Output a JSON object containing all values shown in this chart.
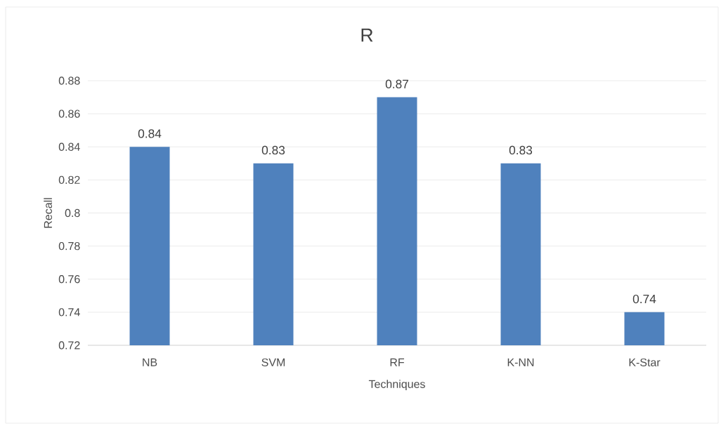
{
  "chart_data": {
    "type": "bar",
    "title": "R",
    "xlabel": "Techniques",
    "ylabel": "Recall",
    "categories": [
      "NB",
      "SVM",
      "RF",
      "K-NN",
      "K-Star"
    ],
    "values": [
      0.84,
      0.83,
      0.87,
      0.83,
      0.74
    ],
    "color": "#4f81bd",
    "ylim": [
      0.72,
      0.88
    ],
    "yticks": [
      0.72,
      0.74,
      0.76,
      0.78,
      0.8,
      0.82,
      0.84,
      0.86,
      0.88
    ],
    "grid": "y",
    "data_labels": true
  }
}
